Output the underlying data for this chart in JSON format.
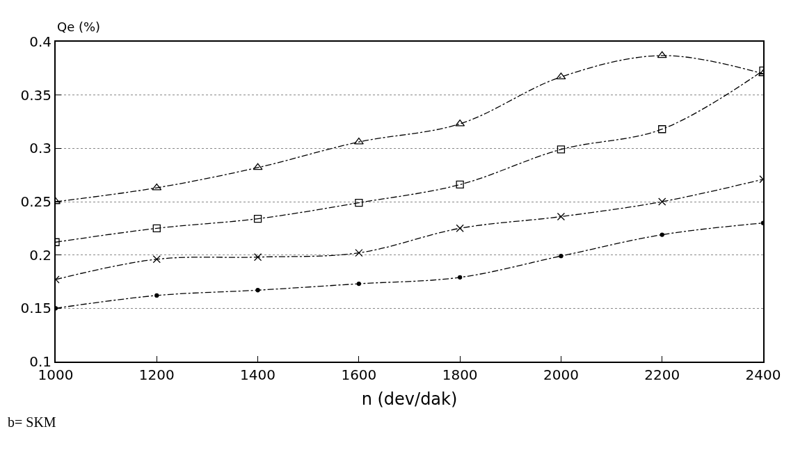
{
  "chart_data": {
    "type": "line",
    "xlabel": "n (dev/dak)",
    "ylabel": "Qe (%)",
    "annotations": [
      "b= SKM"
    ],
    "x": [
      1000,
      1200,
      1400,
      1600,
      1800,
      2000,
      2200,
      2400
    ],
    "xlim": [
      1000,
      2400
    ],
    "xticks": [
      1000,
      1200,
      1400,
      1600,
      1800,
      2000,
      2200,
      2400
    ],
    "ylim": [
      0.1,
      0.4
    ],
    "yticks": [
      0.1,
      0.15,
      0.2,
      0.25,
      0.3,
      0.35,
      0.4
    ],
    "grid": "y",
    "line_style": "dashed",
    "series": [
      {
        "color": "#000000",
        "marker": "triangle",
        "values": [
          0.25,
          0.263,
          0.282,
          0.306,
          0.323,
          0.367,
          0.387,
          0.37
        ]
      },
      {
        "color": "#000000",
        "marker": "square",
        "values": [
          0.212,
          0.225,
          0.234,
          0.249,
          0.266,
          0.299,
          0.318,
          0.373
        ]
      },
      {
        "color": "#000000",
        "marker": "cross",
        "values": [
          0.177,
          0.196,
          0.198,
          0.202,
          0.225,
          0.236,
          0.25,
          0.271
        ]
      },
      {
        "color": "#000000",
        "marker": "circle",
        "values": [
          0.15,
          0.162,
          0.167,
          0.173,
          0.179,
          0.199,
          0.219,
          0.23
        ]
      }
    ]
  }
}
